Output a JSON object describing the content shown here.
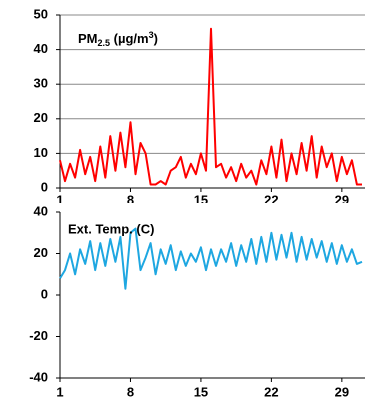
{
  "chart_data": [
    {
      "type": "line",
      "title": [
        "PM",
        "2.5",
        " (µg/m",
        "3",
        ")"
      ],
      "x": [
        1,
        1.5,
        2,
        2.5,
        3,
        3.5,
        4,
        4.5,
        5,
        5.5,
        6,
        6.5,
        7,
        7.5,
        8,
        8.5,
        9,
        9.5,
        10,
        10.5,
        11,
        11.5,
        12,
        12.5,
        13,
        13.5,
        14,
        14.5,
        15,
        15.5,
        16,
        16.5,
        17,
        17.5,
        18,
        18.5,
        19,
        19.5,
        20,
        20.5,
        21,
        21.5,
        22,
        22.5,
        23,
        23.5,
        24,
        24.5,
        25,
        25.5,
        26,
        26.5,
        27,
        27.5,
        28,
        28.5,
        29,
        29.5,
        30,
        30.5,
        31
      ],
      "values": [
        8,
        2,
        7,
        3,
        11,
        4,
        9,
        2,
        12,
        3,
        15,
        5,
        16,
        6,
        19,
        4,
        13,
        10,
        1,
        1,
        2,
        1,
        5,
        6,
        9,
        3,
        7,
        4,
        10,
        5,
        46,
        6,
        7,
        3,
        6,
        2,
        7,
        3,
        5,
        1,
        8,
        4,
        12,
        3,
        14,
        2,
        10,
        4,
        13,
        5,
        15,
        3,
        12,
        6,
        10,
        2,
        9,
        4,
        8,
        1,
        1
      ],
      "color": "#ff0000",
      "xlim": [
        1,
        31.3
      ],
      "xticks": [
        1,
        8,
        15,
        22,
        29
      ],
      "ylim": [
        0,
        50
      ],
      "yticks": [
        0,
        10,
        20,
        30,
        40,
        50
      ],
      "grid": true
    },
    {
      "type": "line",
      "title": "Ext. Temp. (C)",
      "x": [
        1,
        1.5,
        2,
        2.5,
        3,
        3.5,
        4,
        4.5,
        5,
        5.5,
        6,
        6.5,
        7,
        7.5,
        8,
        8.5,
        9,
        9.5,
        10,
        10.5,
        11,
        11.5,
        12,
        12.5,
        13,
        13.5,
        14,
        14.5,
        15,
        15.5,
        16,
        16.5,
        17,
        17.5,
        18,
        18.5,
        19,
        19.5,
        20,
        20.5,
        21,
        21.5,
        22,
        22.5,
        23,
        23.5,
        24,
        24.5,
        25,
        25.5,
        26,
        26.5,
        27,
        27.5,
        28,
        28.5,
        29,
        29.5,
        30,
        30.5,
        31
      ],
      "values": [
        8,
        12,
        20,
        10,
        22,
        15,
        26,
        12,
        25,
        14,
        27,
        16,
        28,
        3,
        30,
        32,
        12,
        18,
        25,
        10,
        22,
        15,
        24,
        12,
        21,
        14,
        20,
        16,
        23,
        12,
        22,
        14,
        22,
        16,
        25,
        14,
        24,
        16,
        27,
        15,
        28,
        16,
        30,
        17,
        29,
        18,
        30,
        16,
        28,
        17,
        27,
        18,
        26,
        16,
        25,
        15,
        24,
        16,
        22,
        15,
        16
      ],
      "color": "#1ea7e1",
      "xlim": [
        1,
        31.3
      ],
      "xticks": [
        1,
        8,
        15,
        22,
        29
      ],
      "ylim": [
        -40,
        40
      ],
      "yticks": [
        -40,
        -20,
        0,
        20,
        40
      ],
      "grid": false
    }
  ]
}
